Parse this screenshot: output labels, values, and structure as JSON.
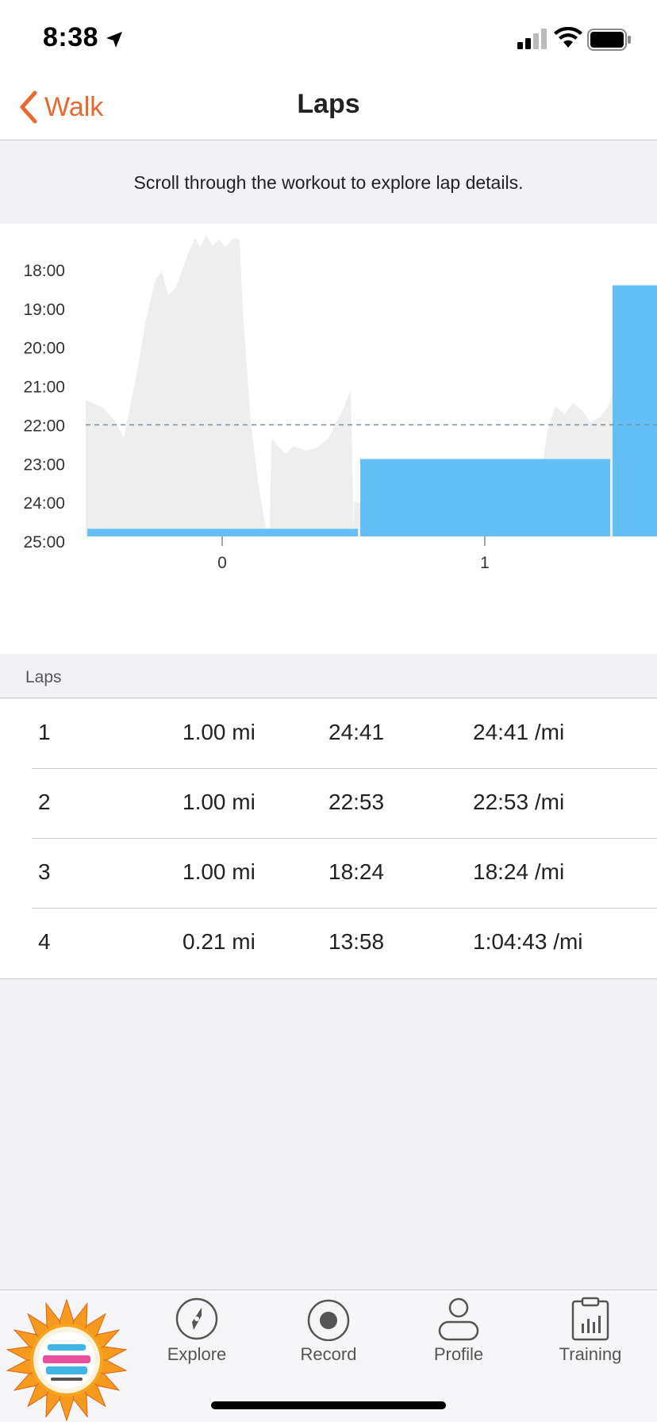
{
  "status": {
    "time": "8:38"
  },
  "nav": {
    "back_label": "Walk",
    "title": "Laps"
  },
  "hint": {
    "text": "Scroll through the workout to explore lap details."
  },
  "chart_data": {
    "type": "bar",
    "ylabel": "",
    "y_ticks": [
      "18:00",
      "19:00",
      "20:00",
      "21:00",
      "22:00",
      "23:00",
      "24:00",
      "25:00"
    ],
    "y_range_minutes": [
      18,
      25
    ],
    "x_ticks": [
      "0",
      "1"
    ],
    "average_pace_minutes": 22,
    "series": [
      {
        "name": "lap pace",
        "values_minutes": [
          24.68,
          22.88,
          18.4
        ]
      }
    ],
    "background_area": "pace trace"
  },
  "laps": {
    "header": "Laps",
    "rows": [
      {
        "num": "1",
        "dist": "1.00 mi",
        "time": "24:41",
        "pace": "24:41 /mi"
      },
      {
        "num": "2",
        "dist": "1.00 mi",
        "time": "22:53",
        "pace": "22:53 /mi"
      },
      {
        "num": "3",
        "dist": "1.00 mi",
        "time": "18:24",
        "pace": "18:24 /mi"
      },
      {
        "num": "4",
        "dist": "0.21 mi",
        "time": "13:58",
        "pace": "1:04:43 /mi"
      }
    ]
  },
  "tabs": {
    "badge": "summer-miles-challenge-badge",
    "explore": "Explore",
    "record": "Record",
    "profile": "Profile",
    "training": "Training"
  },
  "colors": {
    "accent": "#e8692e",
    "bar": "#5bbcf5",
    "trace": "#eeeeee"
  }
}
